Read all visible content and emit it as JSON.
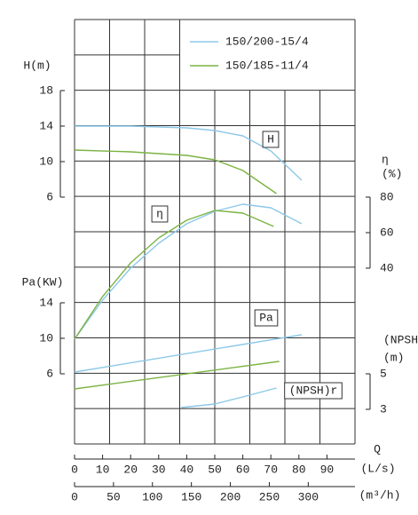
{
  "chart_data": {
    "type": "line",
    "series": [
      {
        "name": "150/200-15/4",
        "color": "#8cc8e8"
      },
      {
        "name": "150/185-11/4",
        "color": "#7cb342"
      }
    ],
    "x_axes": [
      {
        "label": "Q",
        "unit": "(L/s)",
        "xlim": [
          0,
          100
        ],
        "xticks": [
          0,
          10,
          20,
          30,
          40,
          50,
          60,
          70,
          80,
          90
        ]
      },
      {
        "unit": "(m³/h)",
        "xlim": [
          0,
          360
        ],
        "xticks": [
          0,
          50,
          100,
          150,
          200,
          250,
          300
        ]
      }
    ],
    "y_axes": [
      {
        "id": "h",
        "label": "H(m)",
        "ylim": [
          6,
          18
        ],
        "yticks": [
          6,
          10,
          14,
          18
        ]
      },
      {
        "id": "eta",
        "label": "η",
        "unit": "(%)",
        "ylim": [
          40,
          80
        ],
        "yticks": [
          40,
          60,
          80
        ]
      },
      {
        "id": "pa",
        "label": "Pa(KW)",
        "ylim": [
          6,
          14
        ],
        "yticks": [
          6,
          10,
          14
        ]
      },
      {
        "id": "npsh",
        "label": "(NPSH)r",
        "unit": "(m)",
        "ylim": [
          3,
          5
        ],
        "yticks": [
          3,
          5
        ]
      }
    ],
    "curves": [
      {
        "label": "H",
        "axis": "h",
        "lines": [
          {
            "x": [
              0,
              20,
              40,
              50,
              60,
              70,
              81
            ],
            "values": [
              14,
              14,
              13.8,
              13.5,
              12.9,
              11.2,
              7.9
            ]
          },
          {
            "x": [
              0,
              20,
              40,
              50,
              60,
              72
            ],
            "values": [
              11.3,
              11.1,
              10.7,
              10.2,
              9.0,
              6.4
            ]
          }
        ]
      },
      {
        "label": "η",
        "axis": "eta",
        "lines": [
          {
            "x": [
              0,
              10,
              20,
              30,
              40,
              50,
              60,
              70,
              81
            ],
            "values": [
              0,
              22,
              40,
              54,
              65,
              72,
              76,
              74,
              65
            ]
          },
          {
            "x": [
              0,
              10,
              20,
              30,
              40,
              50,
              60,
              71
            ],
            "values": [
              0,
              24,
              43,
              57,
              67,
              72.5,
              71,
              63.5
            ]
          }
        ]
      },
      {
        "label": "Pa",
        "axis": "pa",
        "lines": [
          {
            "x": [
              0,
              81
            ],
            "values": [
              6.2,
              10.4
            ]
          },
          {
            "x": [
              0,
              73
            ],
            "values": [
              4.3,
              7.4
            ]
          }
        ]
      },
      {
        "label": "(NPSH)r",
        "axis": "npsh",
        "lines": [
          {
            "x": [
              38,
              50,
              60,
              72
            ],
            "values": [
              3.1,
              3.3,
              3.7,
              4.2
            ]
          },
          {
            "x": [],
            "values": []
          }
        ]
      }
    ]
  }
}
